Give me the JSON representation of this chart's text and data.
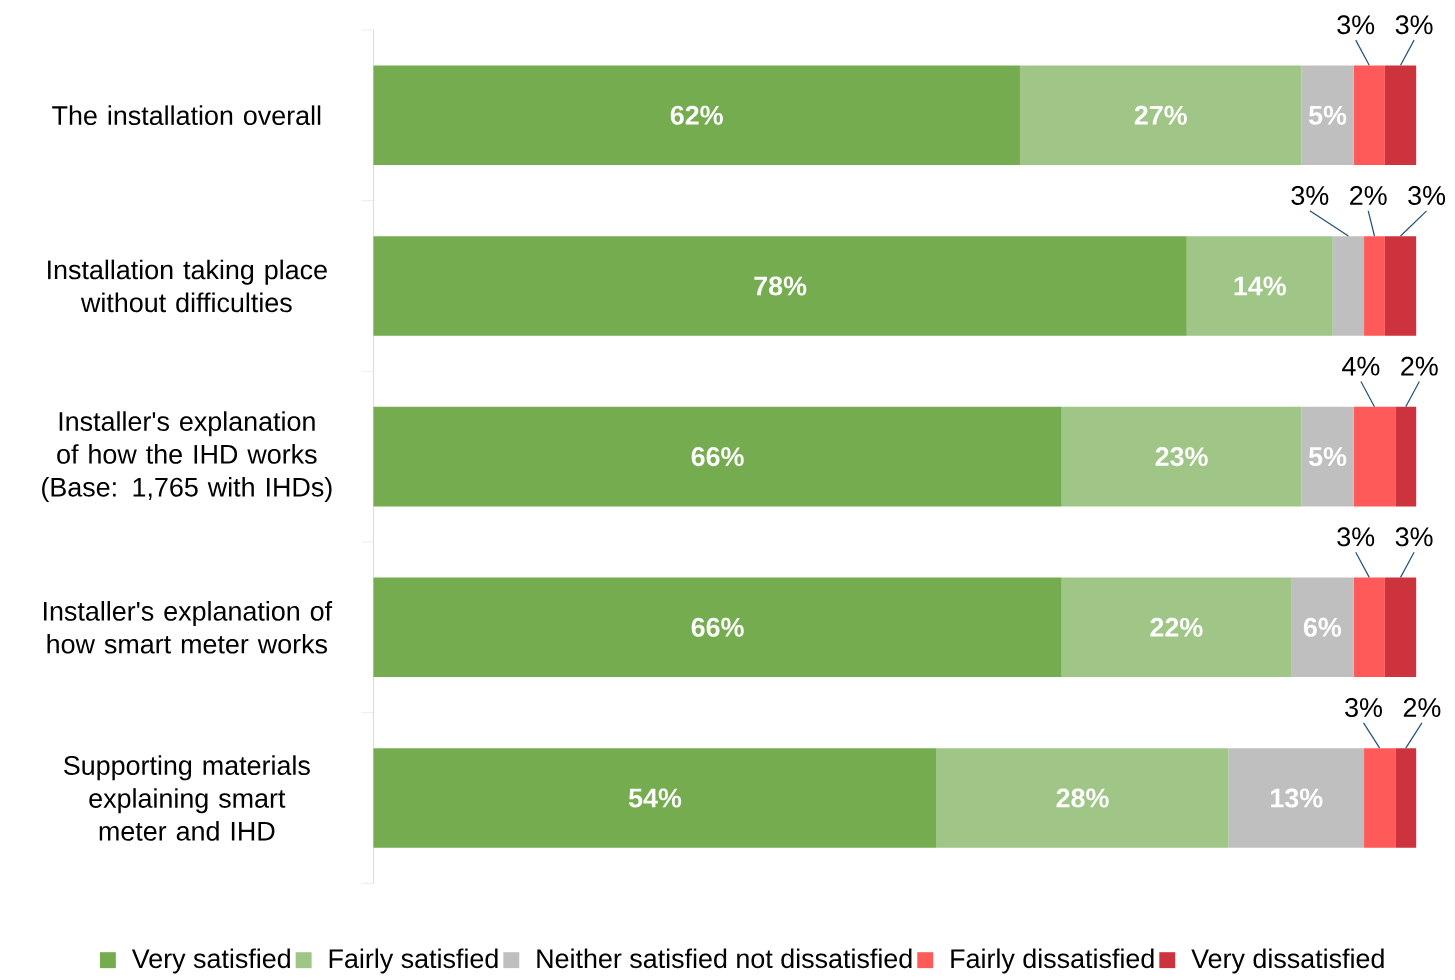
{
  "chart_data": {
    "type": "bar",
    "orientation": "horizontal",
    "stacked": true,
    "legend": "bottom",
    "tick_labels": "y",
    "categories": [
      "The installation overall",
      "Installation taking place without difficulties",
      "Installer's explanation of how the IHD works (Base: 1,765 with IHDs)",
      "Installer's explanation of how smart meter works",
      "Supporting materials explaining smart meter and IHD"
    ],
    "series": [
      {
        "name": "Very satisfied",
        "color": "#75ac4f",
        "values": [
          62,
          78,
          66,
          66,
          54
        ],
        "value_labels": [
          "62%",
          "78%",
          "66%",
          "66%",
          "54%"
        ]
      },
      {
        "name": "Fairly satisfied",
        "color": "#9fc587",
        "values": [
          27,
          14,
          23,
          22,
          28
        ],
        "value_labels": [
          "27%",
          "14%",
          "23%",
          "22%",
          "28%"
        ]
      },
      {
        "name": "Neither satisfied not dissatisfied",
        "color": "#bfbfbf",
        "values": [
          5,
          3,
          5,
          6,
          13
        ],
        "value_labels": [
          "5%",
          "3%",
          "5%",
          "6%",
          "13%"
        ]
      },
      {
        "name": "Fairly dissatisfied",
        "color": "#ff5a5a",
        "values": [
          3,
          2,
          4,
          3,
          3
        ],
        "value_labels": [
          "3%",
          "2%",
          "4%",
          "3%",
          "3%"
        ]
      },
      {
        "name": "Very dissatisfied",
        "color": "#cc333d",
        "values": [
          3,
          3,
          2,
          3,
          2
        ],
        "value_labels": [
          "3%",
          "3%",
          "2%",
          "3%",
          "2%"
        ]
      }
    ]
  }
}
